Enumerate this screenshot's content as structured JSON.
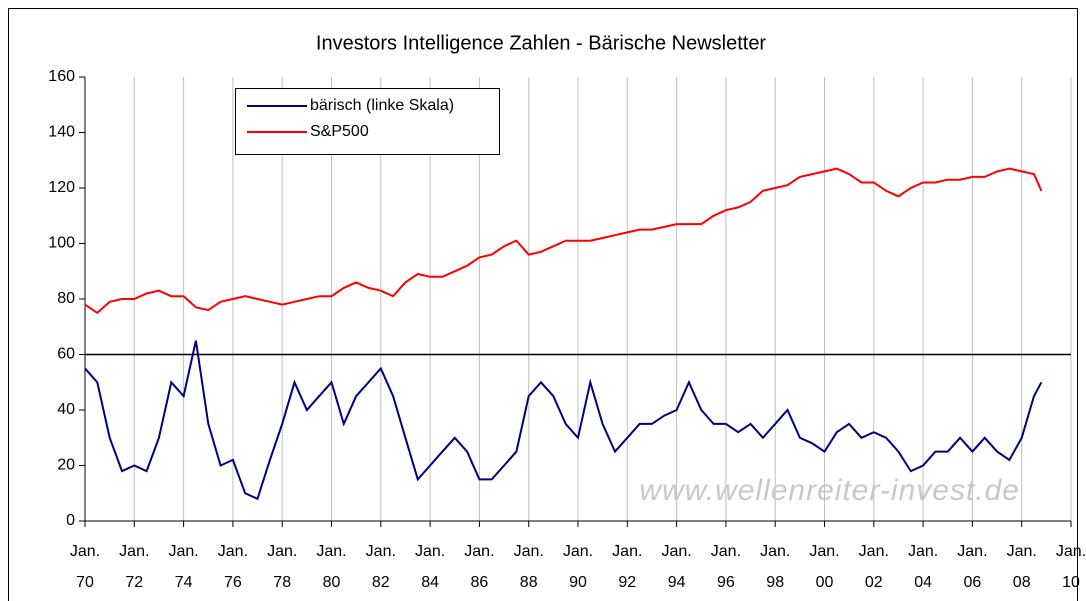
{
  "chart_data": {
    "type": "line",
    "title": "Investors Intelligence Zahlen - Bärische Newsletter",
    "watermark": "www.wellenreiter-invest.de",
    "x": [
      1970,
      1970.5,
      1971,
      1971.5,
      1972,
      1972.5,
      1973,
      1973.5,
      1974,
      1974.5,
      1975,
      1975.5,
      1976,
      1976.5,
      1977,
      1977.5,
      1978,
      1978.5,
      1979,
      1979.5,
      1980,
      1980.5,
      1981,
      1981.5,
      1982,
      1982.5,
      1983,
      1983.5,
      1984,
      1984.5,
      1985,
      1985.5,
      1986,
      1986.5,
      1987,
      1987.5,
      1988,
      1988.5,
      1989,
      1989.5,
      1990,
      1990.5,
      1991,
      1991.5,
      1992,
      1992.5,
      1993,
      1993.5,
      1994,
      1994.5,
      1995,
      1995.5,
      1996,
      1996.5,
      1997,
      1997.5,
      1998,
      1998.5,
      1999,
      1999.5,
      2000,
      2000.5,
      2001,
      2001.5,
      2002,
      2002.5,
      2003,
      2003.5,
      2004,
      2004.5,
      2005,
      2005.5,
      2006,
      2006.5,
      2007,
      2007.5,
      2008,
      2008.5,
      2008.8
    ],
    "series": [
      {
        "name": "bärisch (linke Skala)",
        "color": "#000080",
        "values": [
          55,
          50,
          30,
          18,
          20,
          18,
          30,
          50,
          45,
          65,
          35,
          20,
          22,
          10,
          8,
          22,
          35,
          50,
          40,
          45,
          50,
          35,
          45,
          50,
          55,
          45,
          30,
          15,
          20,
          25,
          30,
          25,
          15,
          15,
          20,
          25,
          45,
          50,
          45,
          35,
          30,
          50,
          35,
          25,
          30,
          35,
          35,
          38,
          40,
          50,
          40,
          35,
          35,
          32,
          35,
          30,
          35,
          40,
          30,
          28,
          25,
          32,
          35,
          30,
          32,
          30,
          25,
          18,
          20,
          25,
          25,
          30,
          25,
          30,
          25,
          22,
          30,
          45,
          50
        ]
      },
      {
        "name": "S&P500",
        "color": "#ff0000",
        "values": [
          78,
          75,
          79,
          80,
          80,
          82,
          83,
          81,
          81,
          77,
          76,
          79,
          80,
          81,
          80,
          79,
          78,
          79,
          80,
          81,
          81,
          84,
          86,
          84,
          83,
          81,
          86,
          89,
          88,
          88,
          90,
          92,
          95,
          96,
          99,
          101,
          96,
          97,
          99,
          101,
          101,
          101,
          102,
          103,
          104,
          105,
          105,
          106,
          107,
          107,
          107,
          110,
          112,
          113,
          115,
          119,
          120,
          121,
          124,
          125,
          126,
          127,
          125,
          122,
          122,
          119,
          117,
          120,
          122,
          122,
          123,
          123,
          124,
          124,
          126,
          127,
          126,
          125,
          119
        ]
      }
    ],
    "hline": 60,
    "xlim": [
      1970,
      2010
    ],
    "xticks": [
      {
        "value": 1970,
        "label": "Jan. 70"
      },
      {
        "value": 1972,
        "label": "Jan. 72"
      },
      {
        "value": 1974,
        "label": "Jan. 74"
      },
      {
        "value": 1976,
        "label": "Jan. 76"
      },
      {
        "value": 1978,
        "label": "Jan. 78"
      },
      {
        "value": 1980,
        "label": "Jan. 80"
      },
      {
        "value": 1982,
        "label": "Jan. 82"
      },
      {
        "value": 1984,
        "label": "Jan. 84"
      },
      {
        "value": 1986,
        "label": "Jan. 86"
      },
      {
        "value": 1988,
        "label": "Jan. 88"
      },
      {
        "value": 1990,
        "label": "Jan. 90"
      },
      {
        "value": 1992,
        "label": "Jan. 92"
      },
      {
        "value": 1994,
        "label": "Jan. 94"
      },
      {
        "value": 1996,
        "label": "Jan. 96"
      },
      {
        "value": 1998,
        "label": "Jan. 98"
      },
      {
        "value": 2000,
        "label": "Jan. 00"
      },
      {
        "value": 2002,
        "label": "Jan. 02"
      },
      {
        "value": 2004,
        "label": "Jan. 04"
      },
      {
        "value": 2006,
        "label": "Jan. 06"
      },
      {
        "value": 2008,
        "label": "Jan. 08"
      },
      {
        "value": 2010,
        "label": "Jan. 10"
      }
    ],
    "ylim": [
      0,
      160
    ],
    "yticks": [
      0,
      20,
      40,
      60,
      80,
      100,
      120,
      140,
      160
    ],
    "grid": true
  }
}
